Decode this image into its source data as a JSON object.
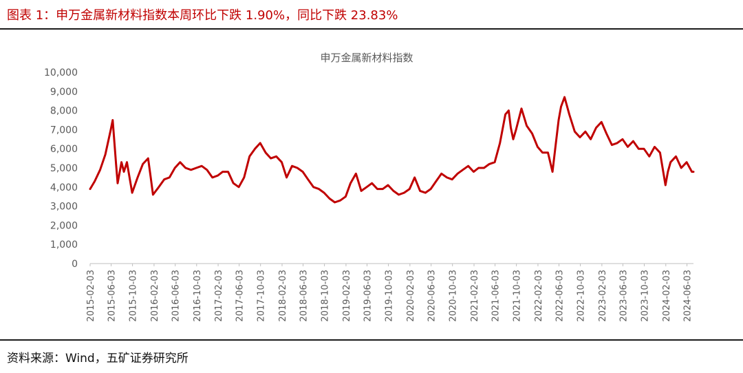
{
  "figure": {
    "title": "图表 1：申万金属新材料指数本周环比下跌 1.90%，同比下跌 23.83%",
    "source": "资料来源：Wind，五矿证券研究所"
  },
  "colors": {
    "line": "#c00000",
    "title": "#c00000",
    "axis": "#bfbfbf",
    "text": "#595959"
  },
  "chart_data": {
    "type": "line",
    "title": "申万金属新材料指数",
    "xlabel": "",
    "ylabel": "",
    "ylim": [
      0,
      10000
    ],
    "yticks": [
      0,
      1000,
      2000,
      3000,
      4000,
      5000,
      6000,
      7000,
      8000,
      9000,
      10000
    ],
    "ytick_labels": [
      "0",
      "1,000",
      "2,000",
      "3,000",
      "4,000",
      "5,000",
      "6,000",
      "7,000",
      "8,000",
      "9,000",
      "10,000"
    ],
    "xtick_labels": [
      "2015-02-03",
      "2015-06-03",
      "2015-10-03",
      "2016-02-03",
      "2016-06-03",
      "2016-10-03",
      "2017-02-03",
      "2017-06-03",
      "2017-10-03",
      "2018-02-03",
      "2018-06-03",
      "2018-10-03",
      "2019-02-03",
      "2019-06-03",
      "2019-10-03",
      "2020-02-03",
      "2020-06-03",
      "2020-10-03",
      "2021-02-03",
      "2021-06-03",
      "2021-10-03",
      "2022-02-03",
      "2022-06-03",
      "2022-10-03",
      "2023-02-03",
      "2023-06-03",
      "2023-10-03",
      "2024-02-03",
      "2024-06-03"
    ],
    "grid": false,
    "legend": "none",
    "series": [
      {
        "x": [
          "2015-02-03",
          "2015-03-01",
          "2015-04-01",
          "2015-05-01",
          "2015-06-01",
          "2015-06-12",
          "2015-07-01",
          "2015-07-10",
          "2015-08-01",
          "2015-08-15",
          "2015-09-01",
          "2015-10-01",
          "2015-11-01",
          "2015-12-01",
          "2015-12-31",
          "2016-01-15",
          "2016-01-28",
          "2016-03-01",
          "2016-04-01",
          "2016-05-01",
          "2016-06-01",
          "2016-07-01",
          "2016-08-01",
          "2016-09-01",
          "2016-10-01",
          "2016-11-01",
          "2016-12-01",
          "2017-01-01",
          "2017-02-01",
          "2017-03-01",
          "2017-04-01",
          "2017-05-01",
          "2017-06-01",
          "2017-07-01",
          "2017-08-01",
          "2017-09-01",
          "2017-10-01",
          "2017-11-01",
          "2017-12-01",
          "2018-01-01",
          "2018-02-01",
          "2018-03-01",
          "2018-04-01",
          "2018-05-01",
          "2018-06-01",
          "2018-07-01",
          "2018-08-01",
          "2018-09-01",
          "2018-10-01",
          "2018-11-01",
          "2018-12-01",
          "2019-01-01",
          "2019-02-01",
          "2019-03-01",
          "2019-04-01",
          "2019-05-01",
          "2019-06-01",
          "2019-07-01",
          "2019-08-01",
          "2019-09-01",
          "2019-10-01",
          "2019-11-01",
          "2019-12-01",
          "2020-01-01",
          "2020-02-01",
          "2020-03-01",
          "2020-04-01",
          "2020-05-01",
          "2020-06-01",
          "2020-07-01",
          "2020-08-01",
          "2020-09-01",
          "2020-10-01",
          "2020-11-01",
          "2020-12-01",
          "2021-01-01",
          "2021-02-01",
          "2021-03-01",
          "2021-04-01",
          "2021-05-01",
          "2021-06-01",
          "2021-07-01",
          "2021-08-01",
          "2021-08-20",
          "2021-09-01",
          "2021-09-15",
          "2021-10-01",
          "2021-11-01",
          "2021-12-01",
          "2022-01-01",
          "2022-02-01",
          "2022-03-01",
          "2022-04-01",
          "2022-04-27",
          "2022-05-15",
          "2022-06-01",
          "2022-06-15",
          "2022-07-05",
          "2022-08-01",
          "2022-09-01",
          "2022-10-01",
          "2022-11-01",
          "2022-12-01",
          "2023-01-01",
          "2023-02-01",
          "2023-03-01",
          "2023-04-01",
          "2023-05-01",
          "2023-06-01",
          "2023-07-01",
          "2023-08-01",
          "2023-09-01",
          "2023-10-01",
          "2023-11-01",
          "2023-12-01",
          "2024-01-01",
          "2024-02-01",
          "2024-02-15",
          "2024-03-01",
          "2024-04-01",
          "2024-05-01",
          "2024-06-01",
          "2024-07-01",
          "2024-07-10"
        ],
        "values": [
          3900,
          4300,
          4900,
          5700,
          7000,
          7500,
          5200,
          4200,
          5300,
          4800,
          5300,
          3700,
          4500,
          5200,
          5500,
          4500,
          3600,
          4000,
          4400,
          4500,
          5000,
          5300,
          5000,
          4900,
          5000,
          5100,
          4900,
          4500,
          4600,
          4800,
          4800,
          4200,
          4000,
          4500,
          5600,
          6000,
          6300,
          5800,
          5500,
          5600,
          5300,
          4500,
          5100,
          5000,
          4800,
          4400,
          4000,
          3900,
          3700,
          3400,
          3200,
          3300,
          3500,
          4200,
          4700,
          3800,
          4000,
          4200,
          3900,
          3900,
          4100,
          3800,
          3600,
          3700,
          3900,
          4500,
          3800,
          3700,
          3900,
          4300,
          4700,
          4500,
          4400,
          4700,
          4900,
          5100,
          4800,
          5000,
          5000,
          5200,
          5300,
          6300,
          7800,
          8000,
          7100,
          6500,
          7000,
          8100,
          7200,
          6800,
          6100,
          5800,
          5800,
          4800,
          6200,
          7500,
          8200,
          8700,
          7800,
          6900,
          6600,
          6900,
          6500,
          7100,
          7400,
          6800,
          6200,
          6300,
          6500,
          6100,
          6400,
          6000,
          6000,
          5600,
          6100,
          5800,
          4100,
          4800,
          5300,
          5600,
          5000,
          5300,
          4800,
          4800
        ]
      }
    ]
  }
}
